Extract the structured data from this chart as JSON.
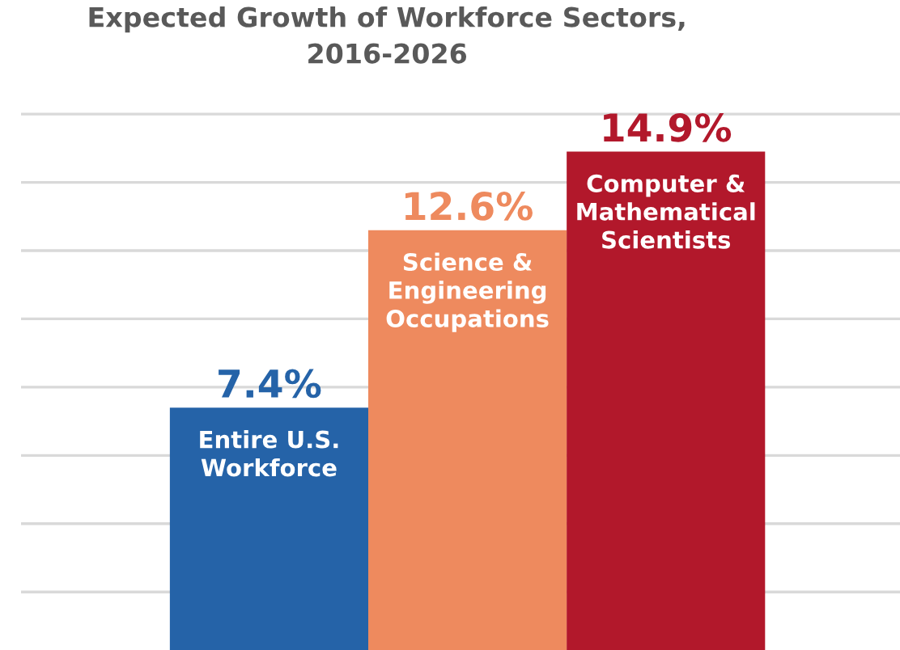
{
  "chart_data": {
    "type": "bar",
    "title": "Expected Growth of Workforce Sectors,\n2016-2026",
    "categories": [
      "Entire U.S.\nWorkforce",
      "Science &\nEngineering\nOccupations",
      "Computer &\nMathematical\nScientists"
    ],
    "values": [
      7.4,
      12.6,
      14.9
    ],
    "colors": [
      "#2563a8",
      "#ee8a5e",
      "#b2182b"
    ],
    "value_labels": [
      "7.4%",
      "12.6%",
      "14.9%"
    ],
    "yticks": [
      {
        "value": 2,
        "label": null
      },
      {
        "value": 4,
        "label": null
      },
      {
        "value": 6,
        "label": null
      },
      {
        "value": 8,
        "label": null
      },
      {
        "value": 10,
        "label": null
      },
      {
        "value": 12,
        "label": null
      },
      {
        "value": 14,
        "label": null
      },
      {
        "value": 16,
        "label": null
      }
    ],
    "grid": "y",
    "legend": false
  }
}
